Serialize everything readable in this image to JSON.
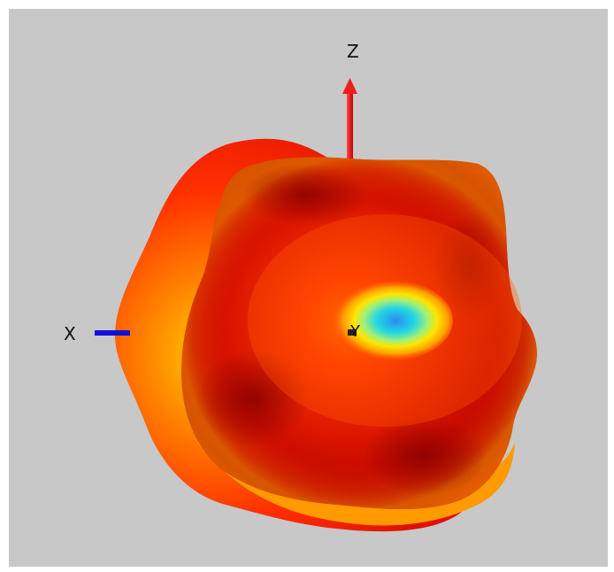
{
  "viewport": {
    "background": "#c8c8c8"
  },
  "axes": {
    "z_label": "Z",
    "x_label": "X",
    "y_label": "Y",
    "z_color": "#ee1c1c",
    "x_color": "#1010d8",
    "y_color": "#222222"
  },
  "pattern": {
    "colors": {
      "rim_outer": "#ff2a00",
      "rim_glow": "#ffb000",
      "body_dark": "#a80000",
      "body_mid": "#d81400",
      "hot_ring_orange": "#ff7a00",
      "hot_ring_yellow": "#ffe600",
      "hot_center_cyan": "#22d6e6",
      "hot_center_blue": "#2a8cf0"
    }
  }
}
